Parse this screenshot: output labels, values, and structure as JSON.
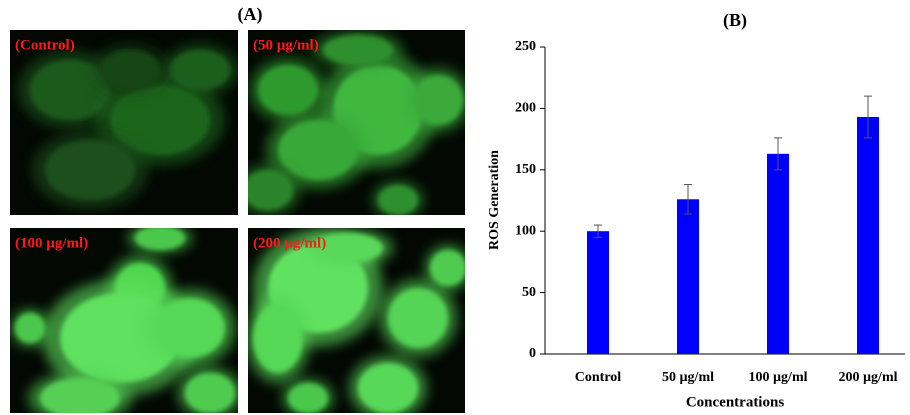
{
  "panel_a": {
    "label": "(A)",
    "images": [
      {
        "label": "(Control)"
      },
      {
        "label": "(50 µg/ml)"
      },
      {
        "label": "(100 µg/ml)"
      },
      {
        "label": "(200 µg/ml)"
      }
    ]
  },
  "chart_data": {
    "type": "bar",
    "title": "(B)",
    "x_label": "Concentrations",
    "y_label": "ROS Generation",
    "categories": [
      "Control",
      "50 µg/ml",
      "100 µg/ml",
      "200 µg/ml"
    ],
    "values": [
      100,
      126,
      163,
      193
    ],
    "error": [
      5,
      12,
      13,
      17
    ],
    "color": "#0000ff",
    "ylim": [
      0,
      250
    ],
    "yticks": [
      0,
      50,
      100,
      150,
      200,
      250
    ],
    "grid": false
  }
}
